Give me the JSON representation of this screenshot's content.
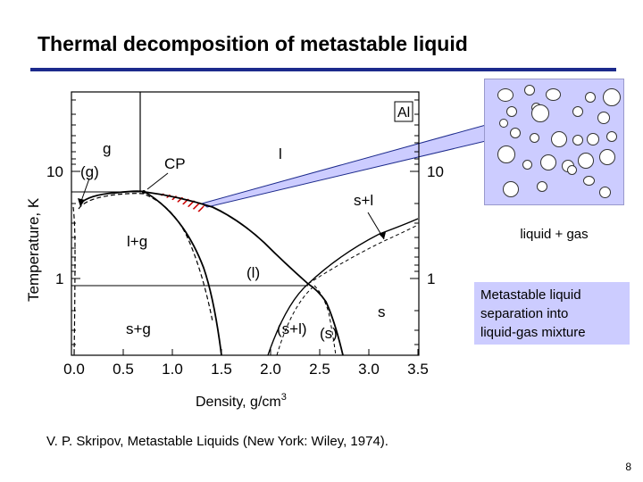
{
  "slide": {
    "title": "Thermal decomposition of metastable liquid",
    "citation": "V. P. Skripov,  Metastable Liquids (New York: Wiley, 1974).",
    "page_number": "8"
  },
  "diagram": {
    "element_label": "Al",
    "x_axis_label": "Density, g/cm",
    "x_axis_label_superscript": "3",
    "y_axis_label": "Temperature, K",
    "x_ticks": [
      "0.0",
      "0.5",
      "1.0",
      "1.5",
      "2.0",
      "2.5",
      "3.0",
      "3.5"
    ],
    "y_tick_left": [
      "10",
      "1"
    ],
    "y_tick_right": [
      "10",
      "1"
    ],
    "regions": {
      "g": "g",
      "g_paren": "(g)",
      "cp": "CP",
      "l": "l",
      "s_plus_l": "s+l",
      "l_plus_g": "l+g",
      "l_paren": "(l)",
      "s": "s",
      "s_plus_g": "s+g",
      "s_plus_l_paren": "(s+l)",
      "s_paren": "(s)"
    }
  },
  "callouts": {
    "bubble_caption": "liquid + gas",
    "separation_lines": [
      "Metastable liquid",
      "separation into",
      "liquid-gas mixture"
    ]
  },
  "colors": {
    "title_rule": "#1c2a8c",
    "callout_fill": "#ccccff",
    "metastable_hatch": "#cc0000"
  }
}
